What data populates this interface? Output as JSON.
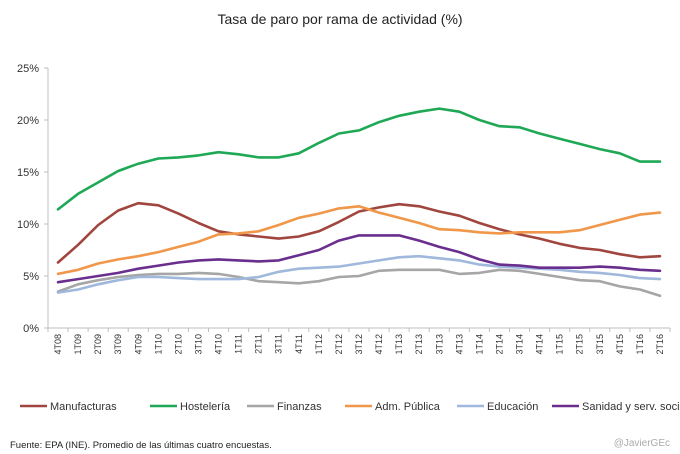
{
  "chart_data": {
    "type": "line",
    "title": "Tasa de paro por rama de actividad (%)",
    "xlabel": "",
    "ylabel": "",
    "ylim": [
      0,
      25
    ],
    "yticks": [
      "0%",
      "5%",
      "10%",
      "15%",
      "20%",
      "25%"
    ],
    "grid": false,
    "legend": "bottom",
    "categories": [
      "4T08",
      "1T09",
      "2T09",
      "3T09",
      "4T09",
      "1T10",
      "2T10",
      "3T10",
      "4T10",
      "1T11",
      "2T11",
      "3T11",
      "4T11",
      "1T12",
      "2T12",
      "3T12",
      "4T12",
      "1T13",
      "2T13",
      "3T13",
      "4T13",
      "1T14",
      "2T14",
      "3T14",
      "4T14",
      "1T15",
      "2T15",
      "3T15",
      "4T15",
      "1T16",
      "2T16"
    ],
    "series": [
      {
        "name": "Manufacturas",
        "color": "#a0463e",
        "values": [
          6.3,
          8.0,
          9.9,
          11.3,
          12.0,
          11.8,
          11.0,
          10.1,
          9.3,
          9.0,
          8.8,
          8.6,
          8.8,
          9.3,
          10.2,
          11.2,
          11.6,
          11.9,
          11.7,
          11.2,
          10.8,
          10.1,
          9.5,
          9.0,
          8.6,
          8.1,
          7.7,
          7.5,
          7.1,
          6.8,
          6.9
        ]
      },
      {
        "name": "Hostelería",
        "color": "#1fa855",
        "values": [
          11.4,
          12.9,
          14.0,
          15.1,
          15.8,
          16.3,
          16.4,
          16.6,
          16.9,
          16.7,
          16.4,
          16.4,
          16.8,
          17.8,
          18.7,
          19.0,
          19.8,
          20.4,
          20.8,
          21.1,
          20.8,
          20.0,
          19.4,
          19.3,
          18.7,
          18.2,
          17.7,
          17.2,
          16.8,
          16.0,
          16.0
        ]
      },
      {
        "name": "Finanzas",
        "color": "#a6a6a6",
        "values": [
          3.5,
          4.2,
          4.6,
          4.9,
          5.1,
          5.2,
          5.2,
          5.3,
          5.2,
          4.9,
          4.5,
          4.4,
          4.3,
          4.5,
          4.9,
          5.0,
          5.5,
          5.6,
          5.6,
          5.6,
          5.2,
          5.3,
          5.6,
          5.5,
          5.2,
          4.9,
          4.6,
          4.5,
          4.0,
          3.7,
          3.1
        ]
      },
      {
        "name": "Adm. Pública",
        "color": "#f0974a",
        "values": [
          5.2,
          5.6,
          6.2,
          6.6,
          6.9,
          7.3,
          7.8,
          8.3,
          9.0,
          9.1,
          9.3,
          9.9,
          10.6,
          11.0,
          11.5,
          11.7,
          11.1,
          10.6,
          10.1,
          9.5,
          9.4,
          9.2,
          9.1,
          9.2,
          9.2,
          9.2,
          9.4,
          9.9,
          10.4,
          10.9,
          11.1
        ]
      },
      {
        "name": "Educación",
        "color": "#9fb8dc",
        "values": [
          3.4,
          3.7,
          4.2,
          4.6,
          4.9,
          4.9,
          4.8,
          4.7,
          4.7,
          4.7,
          4.9,
          5.4,
          5.7,
          5.8,
          5.9,
          6.2,
          6.5,
          6.8,
          6.9,
          6.7,
          6.5,
          6.1,
          5.9,
          5.8,
          5.7,
          5.6,
          5.4,
          5.3,
          5.1,
          4.8,
          4.7
        ]
      },
      {
        "name": "Sanidad y serv. sociales",
        "color": "#6a2f8e",
        "values": [
          4.4,
          4.7,
          5.0,
          5.3,
          5.7,
          6.0,
          6.3,
          6.5,
          6.6,
          6.5,
          6.4,
          6.5,
          7.0,
          7.5,
          8.4,
          8.9,
          8.9,
          8.9,
          8.4,
          7.8,
          7.3,
          6.6,
          6.1,
          6.0,
          5.8,
          5.8,
          5.8,
          5.9,
          5.8,
          5.6,
          5.5
        ]
      }
    ]
  },
  "footer": {
    "source": "Fuente: EPA (INE). Promedio de las últimas cuatro encuestas.",
    "author": "@JavierGEc"
  }
}
